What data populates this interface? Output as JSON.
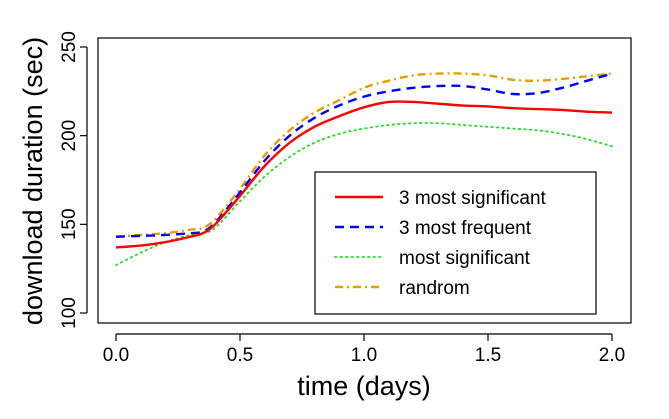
{
  "chart_data": {
    "type": "line",
    "title": "",
    "xlabel": "time (days)",
    "ylabel": "download duration (sec)",
    "xlim": [
      0.0,
      2.0
    ],
    "ylim": [
      100,
      250
    ],
    "x_ticks": [
      0.0,
      0.5,
      1.0,
      1.5,
      2.0
    ],
    "x_tick_labels": [
      "0.0",
      "0.5",
      "1.0",
      "1.5",
      "2.0"
    ],
    "y_ticks": [
      100,
      150,
      200,
      250
    ],
    "y_tick_labels": [
      "100",
      "150",
      "200",
      "250"
    ],
    "grid": false,
    "legend_position": "bottom-right",
    "x": [
      0.0,
      0.1,
      0.2,
      0.3,
      0.35,
      0.4,
      0.5,
      0.6,
      0.7,
      0.8,
      0.9,
      1.0,
      1.1,
      1.2,
      1.3,
      1.4,
      1.5,
      1.6,
      1.7,
      1.8,
      1.9,
      2.0
    ],
    "series": [
      {
        "name": "3 most significant",
        "color": "#ff0000",
        "dash": "solid",
        "values": [
          137,
          138,
          140,
          143,
          145,
          150,
          166,
          183,
          196,
          205,
          211,
          216,
          219,
          219,
          218,
          217,
          216.5,
          215.5,
          215,
          214.5,
          213.5,
          213
        ]
      },
      {
        "name": "3 most frequent",
        "color": "#0000ff",
        "dash": "dashed",
        "values": [
          143,
          143.5,
          144,
          145,
          146,
          151,
          168,
          186,
          200,
          210,
          217,
          222,
          225,
          227,
          228,
          228,
          226,
          223.5,
          224,
          227,
          231,
          235
        ]
      },
      {
        "name": "most significant",
        "color": "#22dd22",
        "dash": "dotted",
        "values": [
          127,
          134,
          140,
          144,
          145,
          148,
          163,
          177,
          188,
          196,
          201,
          204,
          206,
          207,
          207,
          206,
          205,
          204,
          203,
          201,
          198,
          194
        ]
      },
      {
        "name": "randrom",
        "color": "#e69f00",
        "dash": "dashdot",
        "values": [
          143,
          144,
          145,
          147,
          148,
          153,
          170,
          189,
          203,
          213,
          220,
          227,
          231,
          234,
          235,
          235,
          234,
          231.5,
          231,
          232,
          233.5,
          235
        ]
      }
    ]
  }
}
